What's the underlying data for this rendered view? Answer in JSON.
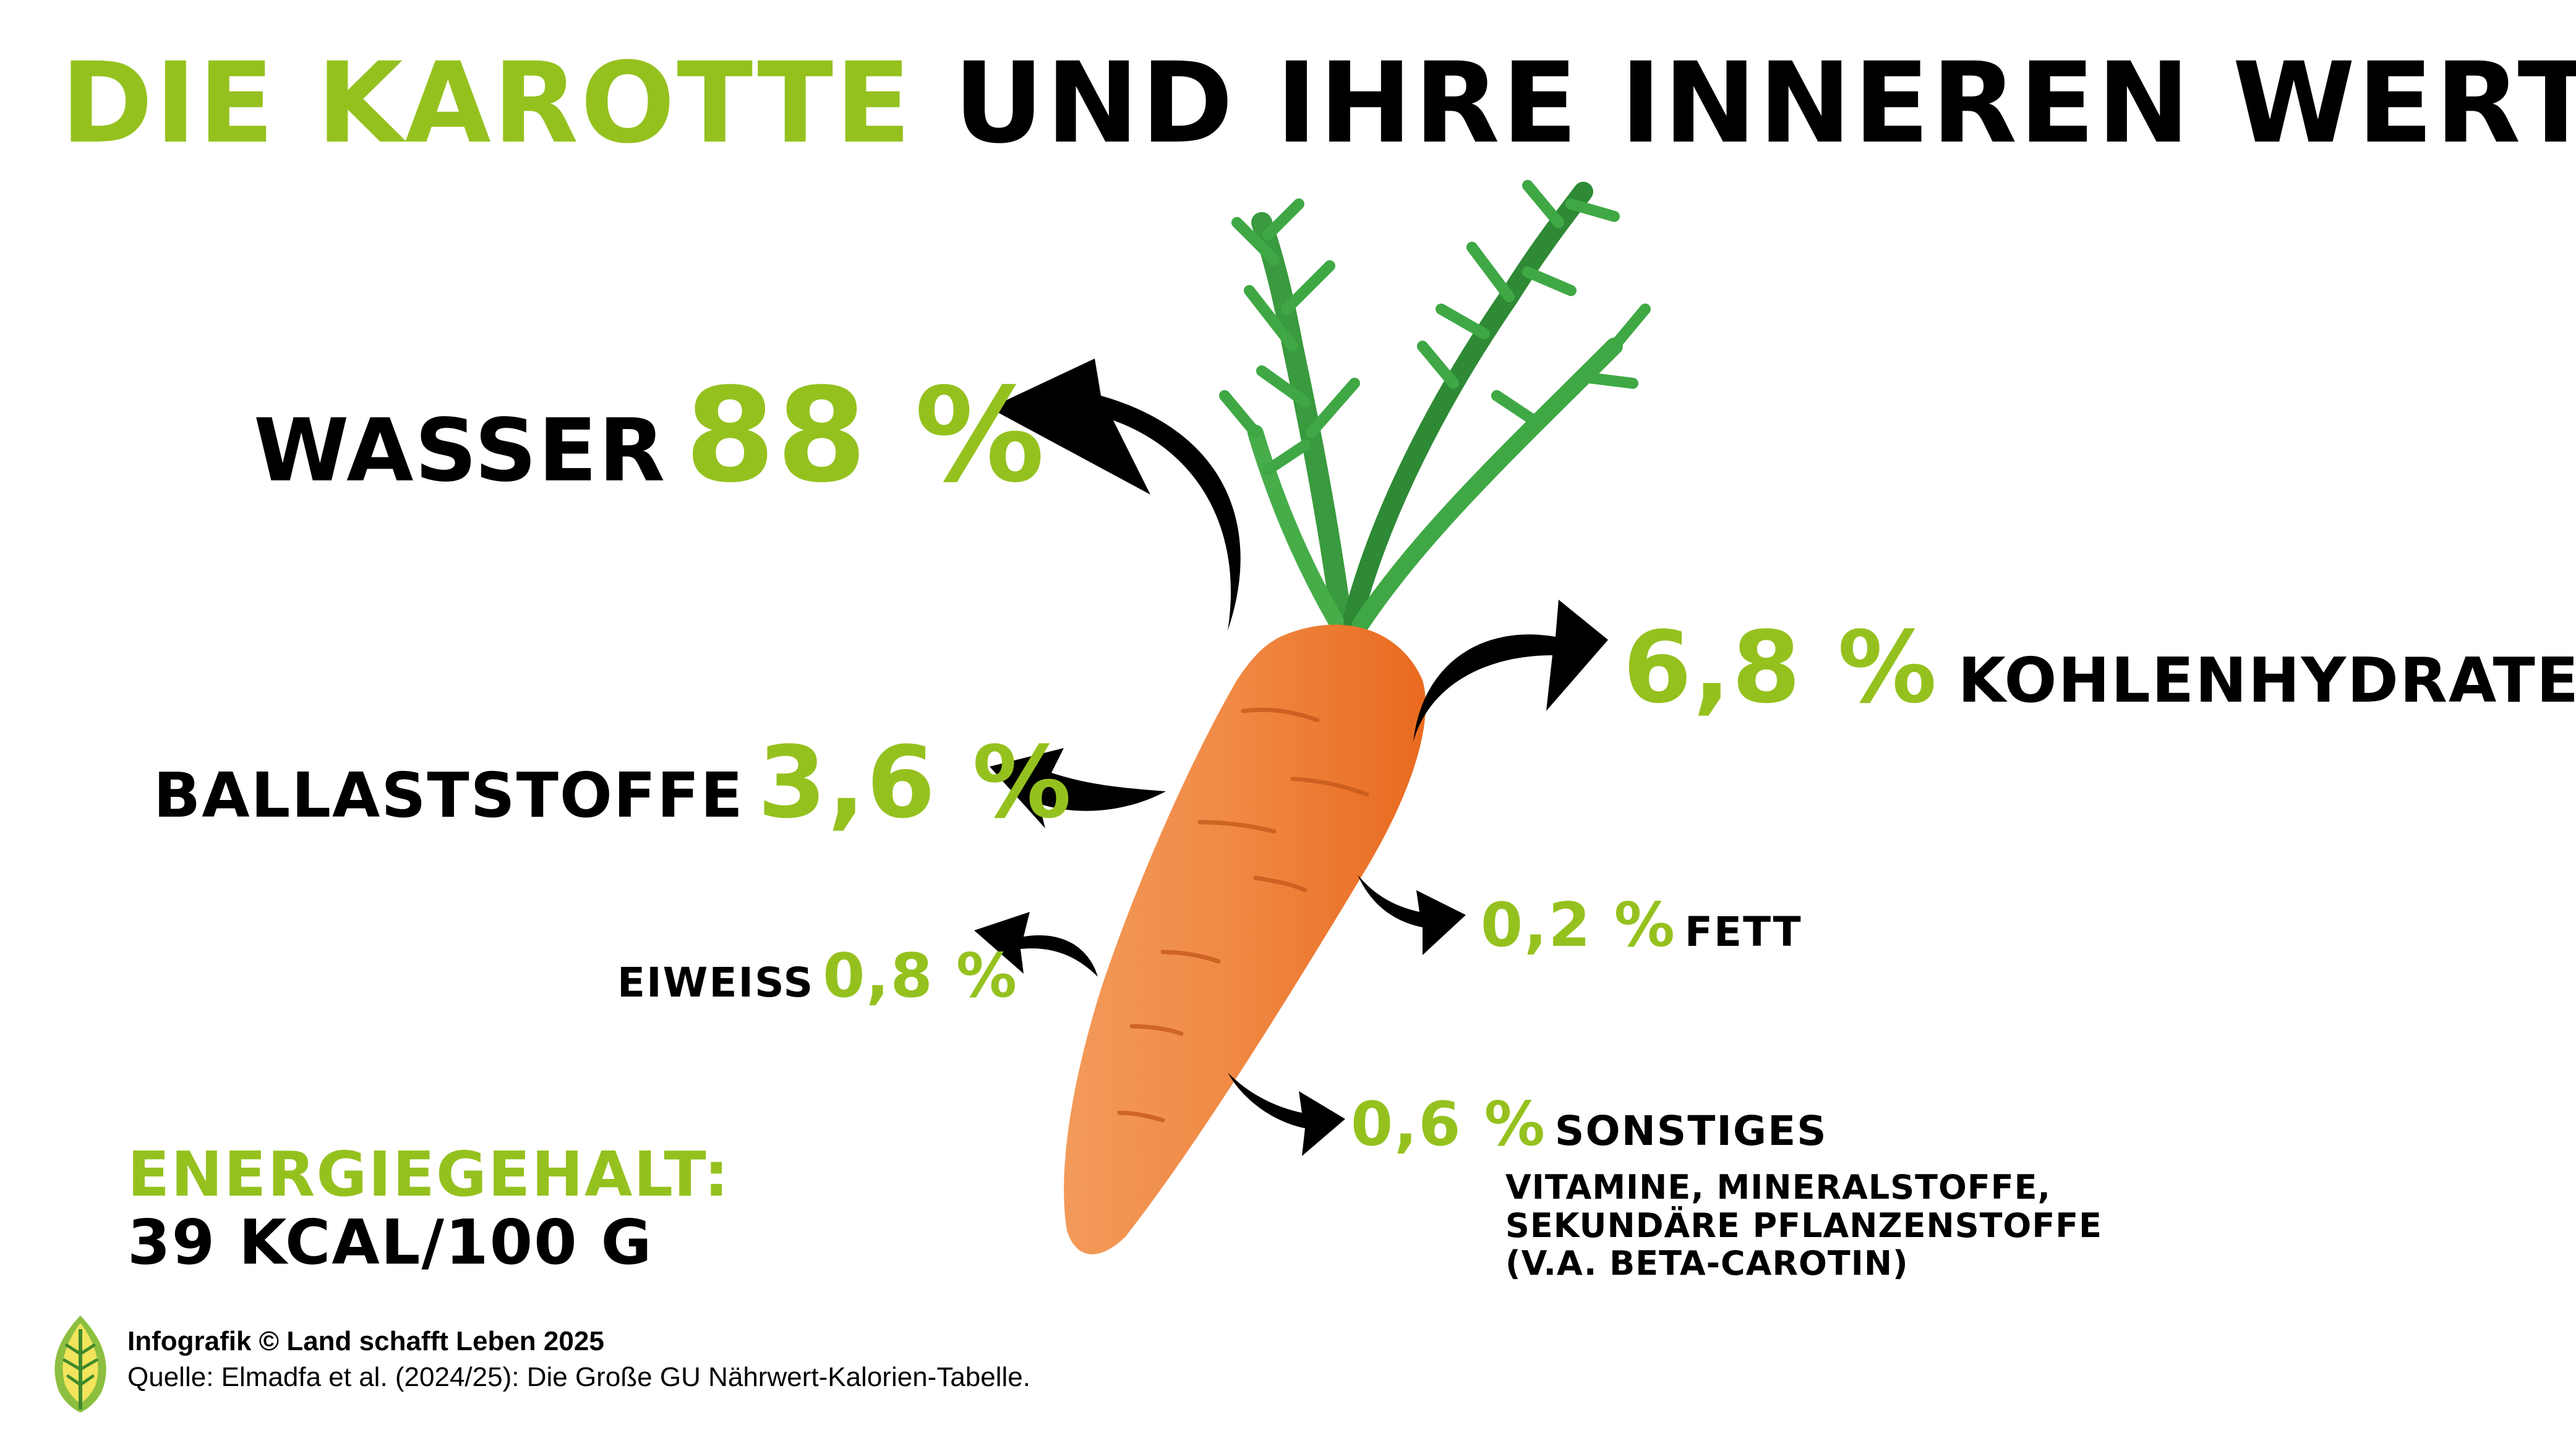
{
  "title": {
    "part1": "DIE KAROTTE",
    "part2": "UND IHRE INNEREN WERTE"
  },
  "nutrients": {
    "wasser": {
      "label": "WASSER",
      "value": "88 %"
    },
    "ballaststoffe": {
      "label": "BALLASTSTOFFE",
      "value": "3,6 %"
    },
    "eiweiss": {
      "label": "EIWEISS",
      "value": "0,8 %"
    },
    "kohlenhydrate": {
      "value": "6,8 %",
      "label": "KOHLENHYDRATE"
    },
    "fett": {
      "value": "0,2 %",
      "label": "FETT"
    },
    "sonstiges": {
      "value": "0,6 %",
      "label": "SONSTIGES",
      "description": [
        "VITAMINE, MINERALSTOFFE,",
        "SEKUNDÄRE PFLANZENSTOFFE",
        "(V.A. BETA-CAROTIN)"
      ]
    }
  },
  "energy": {
    "label": "ENERGIEGEHALT:",
    "value": "39 KCAL/100 G"
  },
  "footer": {
    "credit": "Infografik © Land schafft Leben 2025",
    "source": "Quelle: Elmadfa et al. (2024/25): Die Große GU Nährwert-Kalorien-Tabelle."
  },
  "colors": {
    "accent_green": "#95c11f",
    "text": "#000000",
    "carrot": "#ef7d31",
    "leaf": "#2f8f3a"
  },
  "icons": {
    "logo": "leaf-logo-icon"
  }
}
